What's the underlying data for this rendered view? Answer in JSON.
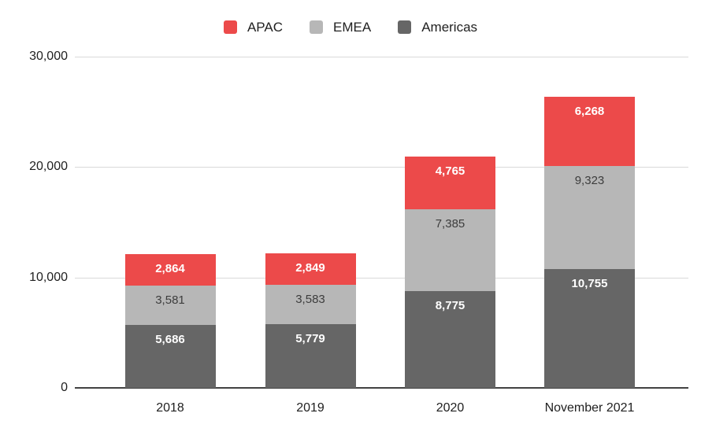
{
  "chart_data": {
    "type": "bar",
    "stacked": true,
    "title": "",
    "xlabel": "",
    "ylabel": "",
    "categories": [
      "2018",
      "2019",
      "2020",
      "November 2021"
    ],
    "series": [
      {
        "name": "Americas",
        "color": "#666666",
        "label_color": "#ffffff",
        "label_bold": true,
        "values": [
          5686,
          5779,
          8775,
          10755
        ]
      },
      {
        "name": "EMEA",
        "color": "#b7b7b7",
        "label_color": "#3d3d3d",
        "label_bold": false,
        "values": [
          3581,
          3583,
          7385,
          9323
        ]
      },
      {
        "name": "APAC",
        "color": "#ec4a4a",
        "label_color": "#ffffff",
        "label_bold": true,
        "values": [
          2864,
          2849,
          4765,
          6268
        ]
      }
    ],
    "legend": {
      "position": "top",
      "entries": [
        "APAC",
        "EMEA",
        "Americas"
      ]
    },
    "ylim": [
      0,
      30000
    ],
    "y_ticks": [
      0,
      10000,
      20000,
      30000
    ],
    "grid": true,
    "colors": {
      "background": "#ffffff",
      "gridline": "#d9d9d9",
      "axis_line": "#424242",
      "tick_label": "#212121"
    }
  }
}
